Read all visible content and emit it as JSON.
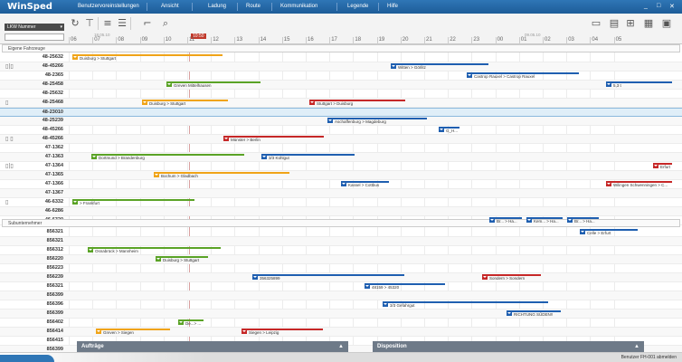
{
  "app": {
    "title": "WinSped"
  },
  "menu": [
    "Benutzervoreinstellungen",
    "Ansicht",
    "Ladung",
    "Route",
    "Kommunikation",
    "Legende",
    "Hilfe"
  ],
  "window_controls": [
    "_",
    "□",
    "✕"
  ],
  "toolbar": {
    "lkw_select": "LKW Nummer",
    "lkw_input": "",
    "date_left": "18.05.10",
    "date_right": "09.05.10",
    "now": "10:50",
    "hours": [
      "06",
      "07",
      "08",
      "09",
      "10",
      "11",
      "12",
      "13",
      "14",
      "15",
      "16",
      "17",
      "18",
      "19",
      "20",
      "21",
      "22",
      "23",
      "00",
      "01",
      "02",
      "03",
      "04",
      "05"
    ]
  },
  "colors": {
    "orange": "#f0a418",
    "green": "#5aa326",
    "blue": "#1f5fb0",
    "red": "#c62828"
  },
  "section1": {
    "title": "Eigene Fahrzeuge"
  },
  "section2": {
    "title": "Subunternehmer"
  },
  "rows1": [
    {
      "label": "48-25632",
      "icon": ""
    },
    {
      "label": "48-45266",
      "icon": "▯|▯"
    },
    {
      "label": "48-2365",
      "icon": ""
    },
    {
      "label": "48-25458",
      "icon": ""
    },
    {
      "label": "48-25632",
      "icon": ""
    },
    {
      "label": "48-25468",
      "icon": "▯"
    },
    {
      "label": "48-23010",
      "icon": ""
    },
    {
      "label": "48-25239",
      "icon": ""
    },
    {
      "label": "48-45266",
      "icon": ""
    },
    {
      "label": "48-45266",
      "icon": "▯ ▯"
    },
    {
      "label": "47-1362",
      "icon": ""
    },
    {
      "label": "47-1363",
      "icon": ""
    },
    {
      "label": "47-1364",
      "icon": "▯|▯"
    },
    {
      "label": "47-1365",
      "icon": ""
    },
    {
      "label": "47-1366",
      "icon": ""
    },
    {
      "label": "47-1367",
      "icon": ""
    },
    {
      "label": "46-6332",
      "icon": "▯"
    },
    {
      "label": "46-6286",
      "icon": ""
    },
    {
      "label": "46-6320",
      "icon": ""
    }
  ],
  "rows2": [
    {
      "label": "856321"
    },
    {
      "label": "856321"
    },
    {
      "label": "856312"
    },
    {
      "label": "856220"
    },
    {
      "label": "856223"
    },
    {
      "label": "856239"
    },
    {
      "label": "856321"
    },
    {
      "label": "856399"
    },
    {
      "label": "856396"
    },
    {
      "label": "856399"
    },
    {
      "label": "856402"
    },
    {
      "label": "856414"
    },
    {
      "label": "856415"
    },
    {
      "label": "856399"
    }
  ],
  "bars1": [
    {
      "row": 0,
      "color": "orange",
      "text": "Duisburg > Stuttgart"
    },
    {
      "row": 1,
      "color": "blue",
      "text": "Witten > Görlitz"
    },
    {
      "row": 2,
      "color": "blue",
      "text": "Castrop Rauxel > Castrop Rauxel"
    },
    {
      "row": 3,
      "color": "green",
      "text": "Greven Mittelhausen"
    },
    {
      "row": 3,
      "color": "blue",
      "text": "5,3 t"
    },
    {
      "row": 5,
      "color": "orange",
      "text": "Duisburg > Stuttgart"
    },
    {
      "row": 5,
      "color": "red",
      "text": "Stuttgart > Duisburg"
    },
    {
      "row": 7,
      "color": "blue",
      "text": "Aschaffenburg > Magdeburg"
    },
    {
      "row": 8,
      "color": "blue",
      "text": "G_H..."
    },
    {
      "row": 9,
      "color": "red",
      "text": "Münster > Berlin"
    },
    {
      "row": 11,
      "color": "green",
      "text": "Dortmund > Brandenburg"
    },
    {
      "row": 11,
      "color": "blue",
      "text": "3/3 Kühlgut"
    },
    {
      "row": 12,
      "color": "red",
      "text": "Erfurt"
    },
    {
      "row": 13,
      "color": "orange",
      "text": "Bochum > Gladbach"
    },
    {
      "row": 14,
      "color": "blue",
      "text": "Kassel > Cottbus"
    },
    {
      "row": 14,
      "color": "red",
      "text": "Wilingen Schwenningen > C..."
    },
    {
      "row": 16,
      "color": "green",
      "text": "> Frankfurt"
    },
    {
      "row": 18,
      "color": "blue",
      "text": "Br... > Ha..."
    },
    {
      "row": 18,
      "color": "blue",
      "text": "Kem... > Ha..."
    },
    {
      "row": 18,
      "color": "blue",
      "text": "Br... > Ha..."
    }
  ],
  "bars2": [
    {
      "row": 0,
      "color": "blue",
      "text": "Celle > Erfurt"
    },
    {
      "row": 2,
      "color": "green",
      "text": "Osnabrück > Mannheim"
    },
    {
      "row": 3,
      "color": "green",
      "text": "Duisburg > Stuttgart"
    },
    {
      "row": 5,
      "color": "blue",
      "text": "356325899"
    },
    {
      "row": 5,
      "color": "red",
      "text": "Sondern > Sondern"
    },
    {
      "row": 6,
      "color": "blue",
      "text": "48159 > 45320"
    },
    {
      "row": 8,
      "color": "blue",
      "text": "3/3 Gefahrgut"
    },
    {
      "row": 9,
      "color": "blue",
      "text": "RICHTUNG SÜDEN!!"
    },
    {
      "row": 10,
      "color": "green",
      "text": "De...> ..."
    },
    {
      "row": 11,
      "color": "orange",
      "text": "Greven > Siegen"
    },
    {
      "row": 11,
      "color": "red",
      "text": "Siegen > Leipzig"
    }
  ],
  "bottom_tabs": [
    {
      "label": "Aufträge",
      "arrow": "▲"
    },
    {
      "label": "Disposition",
      "arrow": "▲"
    }
  ],
  "status": {
    "text": "Benutzer FH-001 abmelden"
  }
}
